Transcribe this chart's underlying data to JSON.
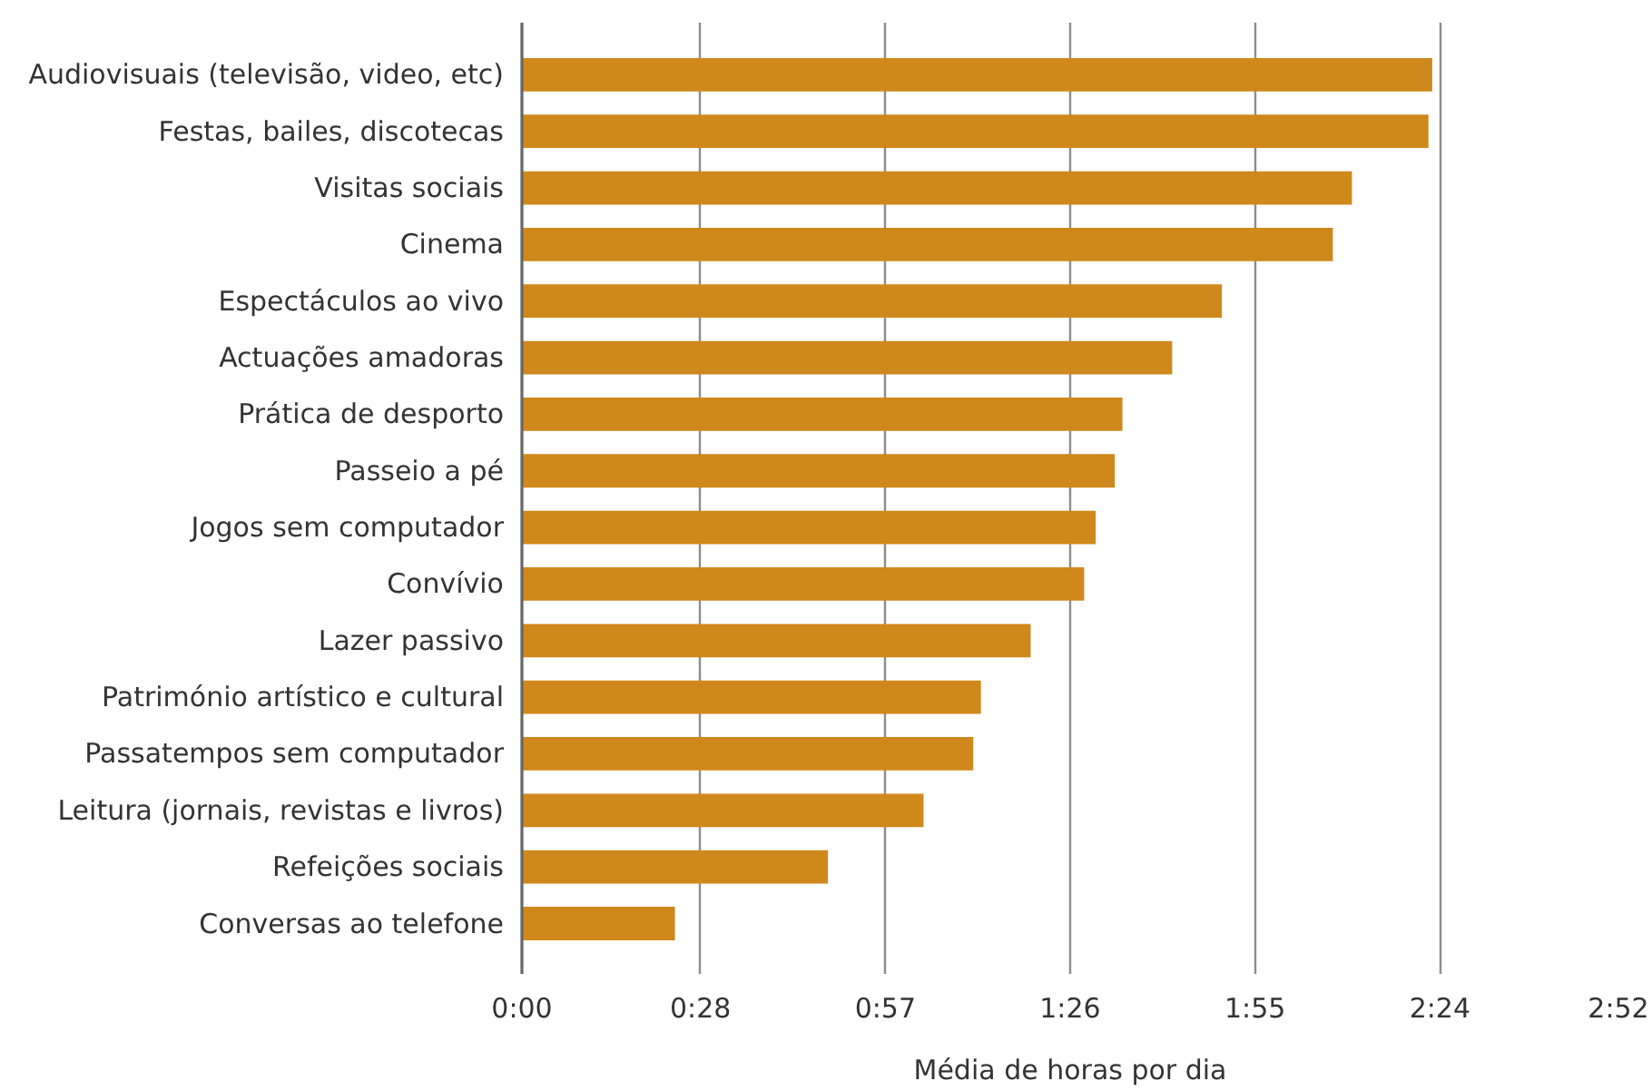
{
  "chart_data": {
    "type": "bar",
    "orientation": "horizontal",
    "categories": [
      "Audiovisuais (televisão, video, etc)",
      "Festas, bailes, discotecas",
      "Visitas sociais",
      "Cinema",
      "Espectáculos ao vivo",
      "Actuações amadoras",
      "Prática de desporto",
      "Passeio a pé",
      "Jogos sem computador",
      "Convívio",
      "Lazer passivo",
      "Património artístico e cultural",
      "Passatempos sem computador",
      "Leitura (jornais, revistas e livros)",
      "Refeições sociais",
      "Conversas ao telefone"
    ],
    "values": [
      2.38,
      2.37,
      2.17,
      2.12,
      1.83,
      1.7,
      1.57,
      1.55,
      1.5,
      1.47,
      1.33,
      1.2,
      1.18,
      1.05,
      0.8,
      0.4
    ],
    "color": "#cf881b",
    "xlabel": "Média de horas por dia",
    "xlim": [
      0,
      2.8667
    ],
    "xticks": [
      {
        "value": 0,
        "label": "0:00"
      },
      {
        "value": 0.4667,
        "label": "0:28"
      },
      {
        "value": 0.95,
        "label": "0:57"
      },
      {
        "value": 1.4333,
        "label": "1:26"
      },
      {
        "value": 1.9167,
        "label": "1:55"
      },
      {
        "value": 2.4,
        "label": "2:24"
      },
      {
        "value": 2.8667,
        "label": "2:52"
      }
    ],
    "grid": "x"
  }
}
